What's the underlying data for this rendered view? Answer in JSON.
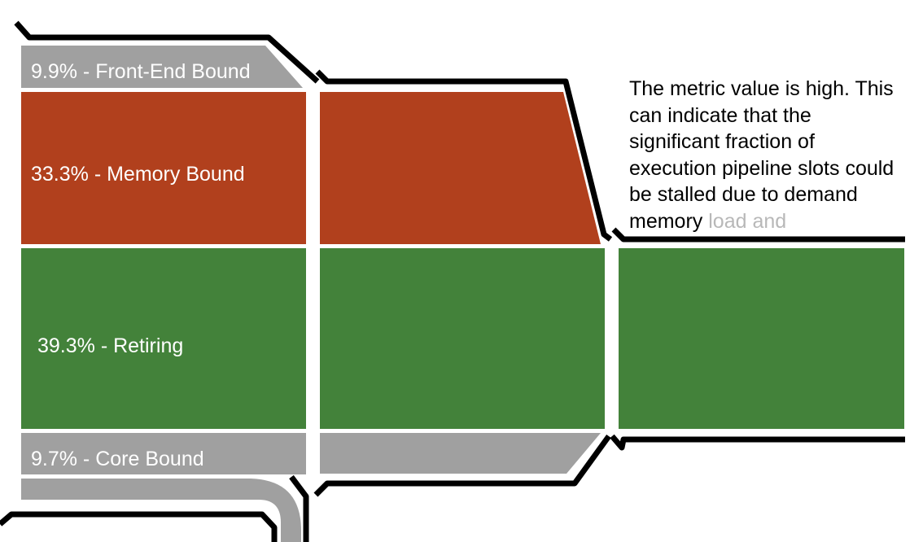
{
  "colors": {
    "gray": "#a0a0a0",
    "red": "#b1401d",
    "green": "#43823a",
    "outline": "#000000",
    "text_light": "#ffffff",
    "text_dark": "#000000"
  },
  "segments": [
    {
      "id": "front-end",
      "label": "9.9% - Front-End Bound",
      "percent": 9.9,
      "color_key": "gray"
    },
    {
      "id": "memory",
      "label": "33.3% - Memory Bound",
      "percent": 33.3,
      "color_key": "red"
    },
    {
      "id": "retiring",
      "label": "39.3% - Retiring",
      "percent": 39.3,
      "color_key": "green"
    },
    {
      "id": "core",
      "label": "9.7% - Core Bound",
      "percent": 9.7,
      "color_key": "gray"
    }
  ],
  "note": {
    "visible_text": "The metric value is high. This can indicate that the significant fraction of execution pipeline slots could be stalled due to demand memory ",
    "faded_text": "load and"
  }
}
